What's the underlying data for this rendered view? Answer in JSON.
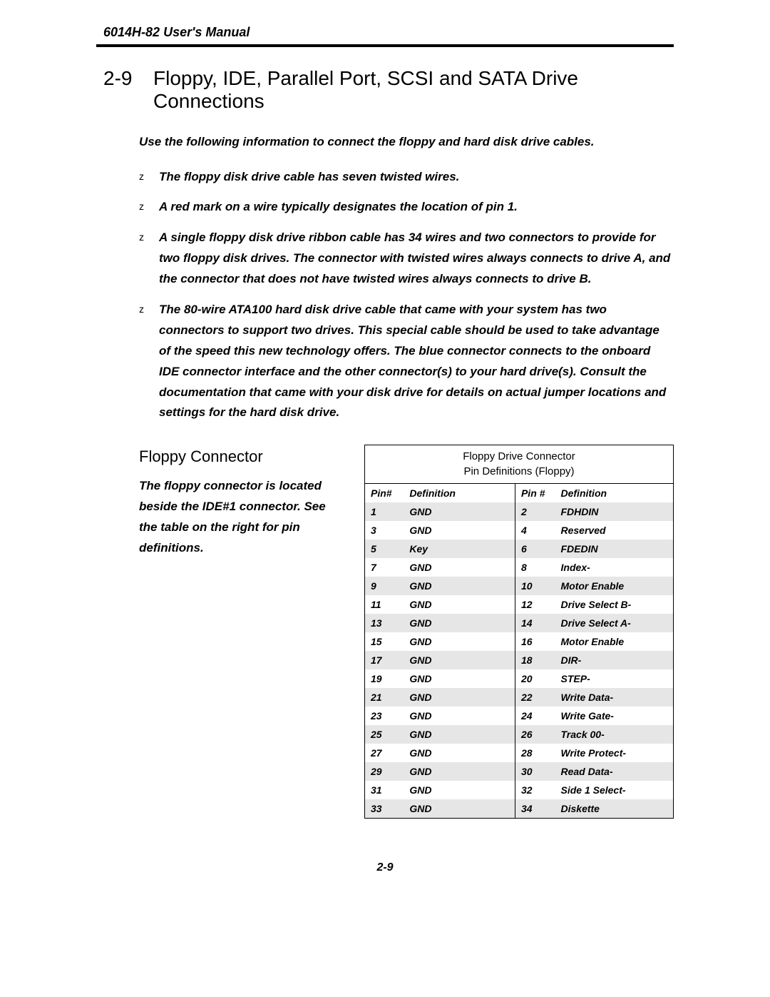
{
  "header": {
    "model": "6014H-82",
    "title_rest": " User's Manual"
  },
  "section": {
    "number": "2-9",
    "title": "Floppy, IDE, Parallel Port, SCSI and SATA Drive Connections"
  },
  "intro": "Use the following information to connect the floppy and hard disk drive cables.",
  "bullets": [
    "The floppy disk drive cable has seven twisted wires.",
    "A red mark on a wire typically designates the location of pin 1.",
    "A single floppy disk drive ribbon cable has 34 wires and two connectors to provide for two floppy disk drives. The connector with twisted wires always connects to drive A, and the connector that does not have twisted wires always connects to drive B.",
    "The 80-wire ATA100 hard disk drive cable that came with your system has two connectors to support two drives. This special cable should be used to take advantage of the speed this new technology offers. The blue connector connects to the onboard IDE connector interface and the other connector(s) to your hard drive(s). Consult the documentation that came with your disk drive for details on actual jumper locations and settings for the hard disk drive."
  ],
  "floppy": {
    "subheading": "Floppy Connector",
    "description": "The floppy connector is located beside the IDE#1 connector. See the table on the right for pin definitions.",
    "table_caption_line1": "Floppy Drive Connector",
    "table_caption_line2": "Pin Definitions (Floppy)",
    "col_headers": {
      "left_pin": "Pin#",
      "left_def": "Definition",
      "right_pin": "Pin #",
      "right_def": "Definition"
    },
    "rows": [
      {
        "lp": "1",
        "ld": "GND",
        "rp": "2",
        "rd": "FDHDIN"
      },
      {
        "lp": "3",
        "ld": "GND",
        "rp": "4",
        "rd": "Reserved"
      },
      {
        "lp": "5",
        "ld": "Key",
        "rp": "6",
        "rd": "FDEDIN"
      },
      {
        "lp": "7",
        "ld": "GND",
        "rp": "8",
        "rd": "Index-"
      },
      {
        "lp": "9",
        "ld": "GND",
        "rp": "10",
        "rd": "Motor Enable"
      },
      {
        "lp": "11",
        "ld": "GND",
        "rp": "12",
        "rd": "Drive Select B-"
      },
      {
        "lp": "13",
        "ld": "GND",
        "rp": "14",
        "rd": "Drive Select A-"
      },
      {
        "lp": "15",
        "ld": "GND",
        "rp": "16",
        "rd": "Motor Enable"
      },
      {
        "lp": "17",
        "ld": "GND",
        "rp": "18",
        "rd": "DIR-"
      },
      {
        "lp": "19",
        "ld": "GND",
        "rp": "20",
        "rd": "STEP-"
      },
      {
        "lp": "21",
        "ld": "GND",
        "rp": "22",
        "rd": "Write Data-"
      },
      {
        "lp": "23",
        "ld": "GND",
        "rp": "24",
        "rd": "Write Gate-"
      },
      {
        "lp": "25",
        "ld": "GND",
        "rp": "26",
        "rd": "Track 00-"
      },
      {
        "lp": "27",
        "ld": "GND",
        "rp": "28",
        "rd": "Write Protect-"
      },
      {
        "lp": "29",
        "ld": "GND",
        "rp": "30",
        "rd": "Read Data-"
      },
      {
        "lp": "31",
        "ld": "GND",
        "rp": "32",
        "rd": "Side 1 Select-"
      },
      {
        "lp": "33",
        "ld": "GND",
        "rp": "34",
        "rd": "Diskette"
      }
    ],
    "shaded_row_color": "#e6e6e6"
  },
  "page_number": "2-9"
}
